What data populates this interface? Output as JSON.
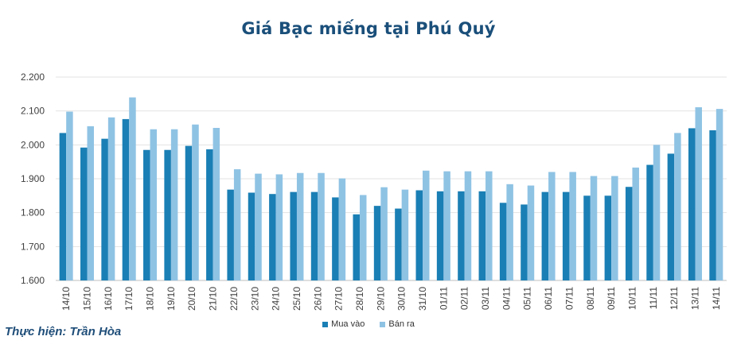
{
  "chart_data": {
    "type": "bar",
    "title": "Giá Bạc miếng tại Phú Quý",
    "credit": "Thực hiện: Trần Hòa",
    "xlabel": "",
    "ylabel": "",
    "ylim": [
      1600,
      2200
    ],
    "yticks": [
      1600,
      1700,
      1800,
      1900,
      2000,
      2100,
      2200
    ],
    "ytick_labels": [
      "1.600",
      "1.700",
      "1.800",
      "1.900",
      "2.000",
      "2.100",
      "2.200"
    ],
    "grid": true,
    "legend_position": "bottom",
    "categories": [
      "14/10",
      "15/10",
      "16/10",
      "17/10",
      "18/10",
      "19/10",
      "20/10",
      "21/10",
      "22/10",
      "23/10",
      "24/10",
      "25/10",
      "26/10",
      "27/10",
      "28/10",
      "29/10",
      "30/10",
      "31/10",
      "01/11",
      "02/11",
      "03/11",
      "04/11",
      "05/11",
      "06/11",
      "07/11",
      "08/11",
      "09/11",
      "10/11",
      "11/11",
      "12/11",
      "13/11",
      "14/11"
    ],
    "series": [
      {
        "name": "Mua vào",
        "color": "#1a7fb5",
        "values": [
          2035,
          1992,
          2018,
          2076,
          1985,
          1985,
          1997,
          1987,
          1868,
          1859,
          1855,
          1861,
          1861,
          1845,
          1795,
          1820,
          1812,
          1866,
          1863,
          1863,
          1863,
          1829,
          1824,
          1861,
          1861,
          1850,
          1850,
          1876,
          1941,
          1974,
          2049,
          2043
        ]
      },
      {
        "name": "Bán ra",
        "color": "#8fc3e4",
        "values": [
          2098,
          2055,
          2081,
          2140,
          2046,
          2046,
          2060,
          2050,
          1928,
          1915,
          1913,
          1917,
          1917,
          1901,
          1852,
          1875,
          1868,
          1924,
          1922,
          1922,
          1922,
          1884,
          1880,
          1920,
          1920,
          1908,
          1908,
          1933,
          2000,
          2035,
          2111,
          2106
        ]
      }
    ]
  }
}
